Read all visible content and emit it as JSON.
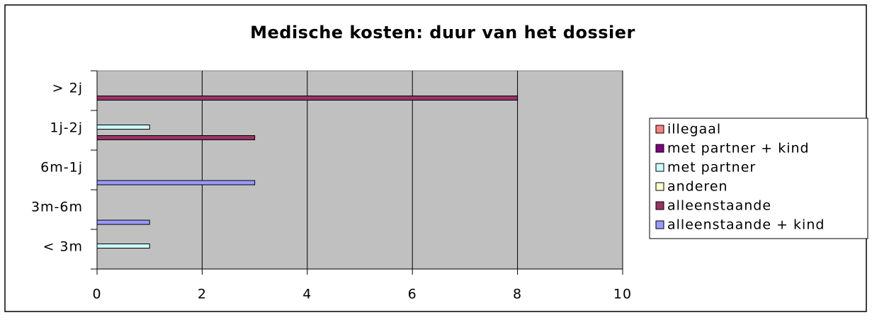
{
  "chart_data": {
    "type": "bar",
    "orientation": "horizontal",
    "title": "Medische kosten: duur van het dossier",
    "categories": [
      "< 3m",
      "3m-6m",
      "6m-1j",
      "1j-2j",
      "> 2j"
    ],
    "series": [
      {
        "name": "illegaal",
        "color": "#FF8080",
        "values": [
          0,
          0,
          0,
          0,
          0
        ]
      },
      {
        "name": "met partner + kind",
        "color": "#800080",
        "values": [
          0,
          0,
          0,
          0,
          0
        ]
      },
      {
        "name": "met partner",
        "color": "#CCFFFF",
        "values": [
          1,
          0,
          0,
          1,
          0
        ]
      },
      {
        "name": "anderen",
        "color": "#FFFFCC",
        "values": [
          0,
          0,
          0,
          0,
          0
        ]
      },
      {
        "name": "alleenstaande",
        "color": "#993366",
        "values": [
          0,
          0,
          0,
          3,
          8
        ]
      },
      {
        "name": "alleenstaande + kind",
        "color": "#9999FF",
        "values": [
          0,
          1,
          3,
          0,
          0
        ]
      }
    ],
    "xlim": [
      0,
      10
    ],
    "xticks": [
      0,
      2,
      4,
      6,
      8,
      10
    ],
    "grid": true,
    "legend": "right"
  }
}
